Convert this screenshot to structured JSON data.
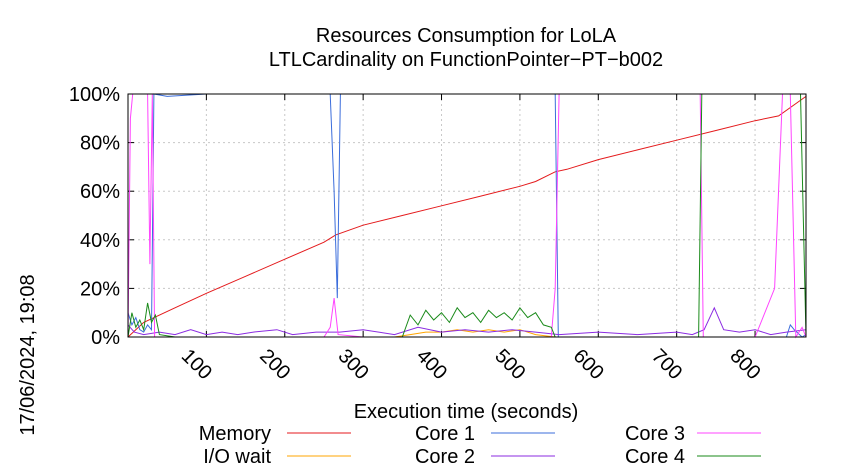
{
  "chart_data": {
    "type": "line",
    "title": "Resources Consumption for LoLA",
    "subtitle": "LTLCardinality on FunctionPointer−PT−b002",
    "xlabel": "Execution time (seconds)",
    "ylabel": "",
    "timestamp": "17/06/2024, 19:08",
    "xlim": [
      0,
      865
    ],
    "ylim": [
      0,
      100
    ],
    "x_ticks": [
      100,
      200,
      300,
      400,
      500,
      600,
      700,
      800
    ],
    "y_ticks": [
      0,
      20,
      40,
      60,
      80,
      100
    ],
    "y_tick_labels": [
      "0%",
      "20%",
      "40%",
      "60%",
      "80%",
      "100%"
    ],
    "grid": true,
    "legend_position": "bottom",
    "series": [
      {
        "name": "Memory",
        "color": "#e41a1c",
        "points": [
          [
            0,
            0
          ],
          [
            20,
            6
          ],
          [
            60,
            12
          ],
          [
            100,
            18
          ],
          [
            150,
            25
          ],
          [
            200,
            32
          ],
          [
            250,
            39
          ],
          [
            265,
            42
          ],
          [
            300,
            46
          ],
          [
            350,
            50
          ],
          [
            400,
            54
          ],
          [
            450,
            58
          ],
          [
            500,
            62
          ],
          [
            520,
            64
          ],
          [
            545,
            68
          ],
          [
            560,
            69
          ],
          [
            600,
            73
          ],
          [
            650,
            77
          ],
          [
            700,
            81
          ],
          [
            750,
            85
          ],
          [
            800,
            89
          ],
          [
            830,
            91
          ],
          [
            865,
            99
          ]
        ]
      },
      {
        "name": "I/O wait",
        "color": "#ffa500",
        "points": [
          [
            0,
            0
          ],
          [
            50,
            0
          ],
          [
            150,
            0
          ],
          [
            300,
            0
          ],
          [
            340,
            0
          ],
          [
            360,
            1
          ],
          [
            380,
            2
          ],
          [
            400,
            2
          ],
          [
            420,
            3
          ],
          [
            440,
            2
          ],
          [
            460,
            3
          ],
          [
            480,
            2
          ],
          [
            500,
            3
          ],
          [
            520,
            1
          ],
          [
            545,
            0
          ],
          [
            600,
            0
          ],
          [
            700,
            0
          ],
          [
            800,
            0
          ],
          [
            865,
            0
          ]
        ]
      },
      {
        "name": "Core 1",
        "color": "#3b6ddb",
        "points": [
          [
            0,
            10
          ],
          [
            5,
            5
          ],
          [
            10,
            8
          ],
          [
            15,
            3
          ],
          [
            20,
            2
          ],
          [
            25,
            5
          ],
          [
            30,
            3
          ],
          [
            33,
            100
          ],
          [
            50,
            99
          ],
          [
            100,
            100
          ],
          [
            150,
            100
          ],
          [
            200,
            100
          ],
          [
            250,
            100
          ],
          [
            258,
            100
          ],
          [
            263,
            60
          ],
          [
            267,
            16
          ],
          [
            271,
            100
          ],
          [
            300,
            100
          ],
          [
            400,
            100
          ],
          [
            500,
            100
          ],
          [
            545,
            100
          ],
          [
            549,
            0
          ],
          [
            560,
            0
          ],
          [
            600,
            0
          ],
          [
            700,
            0
          ],
          [
            800,
            0
          ],
          [
            840,
            0
          ],
          [
            845,
            5
          ],
          [
            850,
            3
          ],
          [
            860,
            0
          ],
          [
            865,
            1
          ]
        ]
      },
      {
        "name": "Core 2",
        "color": "#8b2be2",
        "points": [
          [
            0,
            5
          ],
          [
            8,
            2
          ],
          [
            20,
            1
          ],
          [
            40,
            2
          ],
          [
            60,
            1
          ],
          [
            80,
            3
          ],
          [
            100,
            1
          ],
          [
            120,
            2
          ],
          [
            140,
            1
          ],
          [
            160,
            2
          ],
          [
            190,
            3
          ],
          [
            210,
            1
          ],
          [
            240,
            2
          ],
          [
            270,
            2
          ],
          [
            300,
            3
          ],
          [
            340,
            1
          ],
          [
            370,
            4
          ],
          [
            400,
            2
          ],
          [
            430,
            3
          ],
          [
            460,
            2
          ],
          [
            490,
            3
          ],
          [
            520,
            2
          ],
          [
            550,
            1
          ],
          [
            600,
            2
          ],
          [
            650,
            1
          ],
          [
            700,
            2
          ],
          [
            720,
            1
          ],
          [
            735,
            3
          ],
          [
            748,
            12
          ],
          [
            760,
            3
          ],
          [
            780,
            2
          ],
          [
            800,
            3
          ],
          [
            820,
            1
          ],
          [
            840,
            2
          ],
          [
            865,
            3
          ]
        ]
      },
      {
        "name": "Core 3",
        "color": "#ff44ff",
        "points": [
          [
            0,
            0
          ],
          [
            3,
            90
          ],
          [
            6,
            100
          ],
          [
            25,
            100
          ],
          [
            28,
            30
          ],
          [
            31,
            100
          ],
          [
            34,
            0
          ],
          [
            60,
            0
          ],
          [
            100,
            0
          ],
          [
            150,
            0
          ],
          [
            200,
            0
          ],
          [
            250,
            0
          ],
          [
            258,
            4
          ],
          [
            263,
            16
          ],
          [
            268,
            1
          ],
          [
            300,
            0
          ],
          [
            400,
            0
          ],
          [
            500,
            0
          ],
          [
            540,
            0
          ],
          [
            545,
            20
          ],
          [
            550,
            100
          ],
          [
            600,
            100
          ],
          [
            700,
            100
          ],
          [
            730,
            100
          ],
          [
            734,
            0
          ],
          [
            760,
            0
          ],
          [
            800,
            0
          ],
          [
            825,
            20
          ],
          [
            835,
            100
          ],
          [
            845,
            100
          ],
          [
            852,
            0
          ],
          [
            860,
            4
          ],
          [
            865,
            0
          ]
        ]
      },
      {
        "name": "Core 4",
        "color": "#1a8a1a",
        "points": [
          [
            0,
            0
          ],
          [
            5,
            10
          ],
          [
            10,
            4
          ],
          [
            15,
            7
          ],
          [
            20,
            3
          ],
          [
            25,
            14
          ],
          [
            30,
            6
          ],
          [
            35,
            9
          ],
          [
            40,
            1
          ],
          [
            60,
            0
          ],
          [
            100,
            0
          ],
          [
            200,
            0
          ],
          [
            250,
            0
          ],
          [
            300,
            0
          ],
          [
            350,
            0
          ],
          [
            360,
            9
          ],
          [
            370,
            5
          ],
          [
            380,
            11
          ],
          [
            390,
            7
          ],
          [
            400,
            10
          ],
          [
            410,
            6
          ],
          [
            420,
            12
          ],
          [
            430,
            8
          ],
          [
            440,
            10
          ],
          [
            450,
            6
          ],
          [
            460,
            11
          ],
          [
            470,
            8
          ],
          [
            480,
            10
          ],
          [
            490,
            7
          ],
          [
            500,
            12
          ],
          [
            510,
            8
          ],
          [
            520,
            10
          ],
          [
            530,
            5
          ],
          [
            540,
            4
          ],
          [
            545,
            0
          ],
          [
            600,
            0
          ],
          [
            700,
            0
          ],
          [
            728,
            0
          ],
          [
            732,
            100
          ],
          [
            760,
            100
          ],
          [
            800,
            100
          ],
          [
            840,
            100
          ],
          [
            858,
            100
          ],
          [
            865,
            0
          ]
        ]
      }
    ]
  }
}
